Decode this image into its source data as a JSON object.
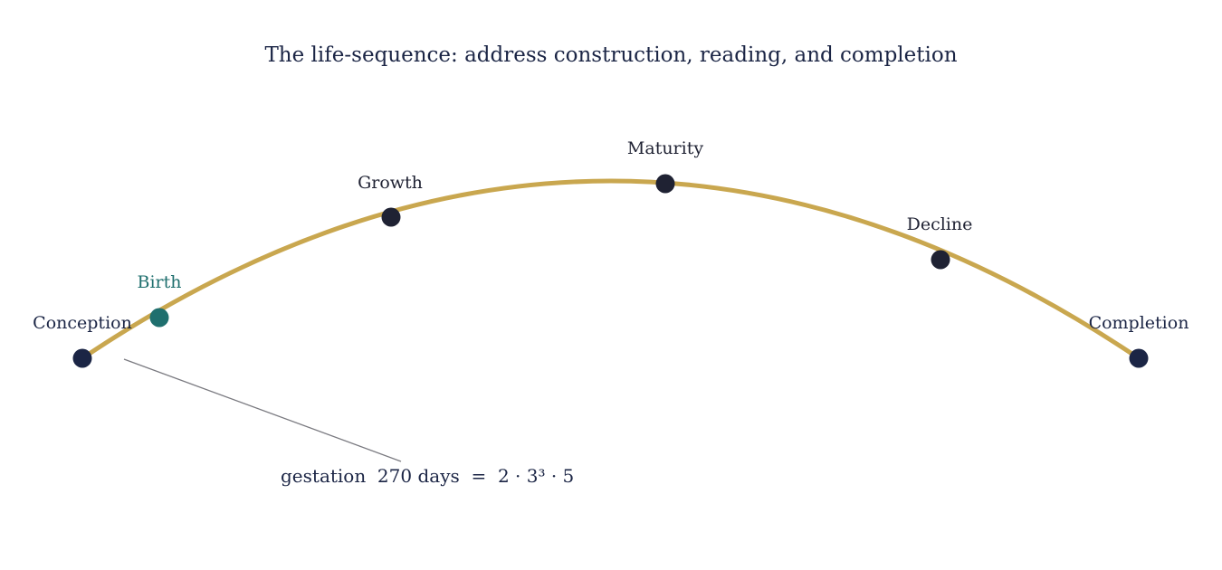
{
  "title": "The life-sequence: address construction, reading, and completion",
  "colors": {
    "arc": "#c9a74f",
    "node_default": "#1f2233",
    "node_endpoint": "#1b2545",
    "node_birth": "#1f6f6e",
    "label_default": "#1f2233",
    "label_endpoint": "#1b2545",
    "label_birth": "#1f6f6e",
    "leader_line": "#7a7a80"
  },
  "stages": [
    {
      "id": "conception",
      "label": "Conception",
      "role": "endpoint"
    },
    {
      "id": "birth",
      "label": "Birth",
      "role": "highlight"
    },
    {
      "id": "growth",
      "label": "Growth",
      "role": "default"
    },
    {
      "id": "maturity",
      "label": "Maturity",
      "role": "default"
    },
    {
      "id": "decline",
      "label": "Decline",
      "role": "default"
    },
    {
      "id": "completion",
      "label": "Completion",
      "role": "endpoint"
    }
  ],
  "annotation": {
    "text": "gestation  270 days  =  2 · 3³ · 5",
    "points_to": "conception"
  }
}
